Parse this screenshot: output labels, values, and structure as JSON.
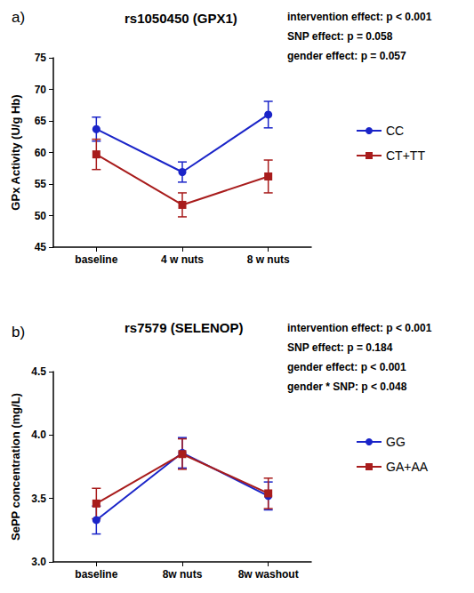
{
  "chart_data": [
    {
      "type": "line",
      "panel": "a)",
      "title": "rs1050450 (GPX1)",
      "annotations": [
        "intervention effect: p < 0.001",
        "SNP effect: p = 0.058",
        "gender effect: p = 0.057"
      ],
      "y_label": "GPx Activity (U/g Hb)",
      "categories": [
        "baseline",
        "4 w nuts",
        "8 w nuts"
      ],
      "series": [
        {
          "name": "CC",
          "color": "#1a24c8",
          "marker": "circle",
          "values": [
            63.7,
            56.9,
            66.0
          ],
          "errors": [
            1.9,
            1.6,
            2.1
          ]
        },
        {
          "name": "CT+TT",
          "color": "#a81c1c",
          "marker": "square",
          "values": [
            59.7,
            51.7,
            56.2
          ],
          "errors": [
            2.4,
            1.9,
            2.6
          ]
        }
      ],
      "ylim": [
        45,
        75
      ],
      "yticks": [
        45,
        50,
        55,
        60,
        65,
        70,
        75
      ],
      "grid": false,
      "legend": "right"
    },
    {
      "type": "line",
      "panel": "b)",
      "title": "rs7579 (SELENOP)",
      "annotations": [
        "intervention effect: p < 0.001",
        "SNP effect: p = 0.184",
        "gender effect: p < 0.001",
        "gender * SNP: p < 0.048"
      ],
      "y_label": "SePP concentration (mg/L)",
      "categories": [
        "baseline",
        "8w nuts",
        "8w washout"
      ],
      "series": [
        {
          "name": "GG",
          "color": "#1a24c8",
          "marker": "circle",
          "values": [
            3.33,
            3.86,
            3.52
          ],
          "errors": [
            0.11,
            0.12,
            0.11
          ]
        },
        {
          "name": "GA+AA",
          "color": "#a81c1c",
          "marker": "square",
          "values": [
            3.46,
            3.85,
            3.54
          ],
          "errors": [
            0.12,
            0.12,
            0.12
          ]
        }
      ],
      "ylim": [
        3.0,
        4.5
      ],
      "yticks": [
        {
          "value": 3.0,
          "label": "3.0"
        },
        3.5,
        {
          "value": 4.0,
          "label": "4.0"
        },
        4.5
      ],
      "grid": false,
      "legend": "right"
    }
  ]
}
